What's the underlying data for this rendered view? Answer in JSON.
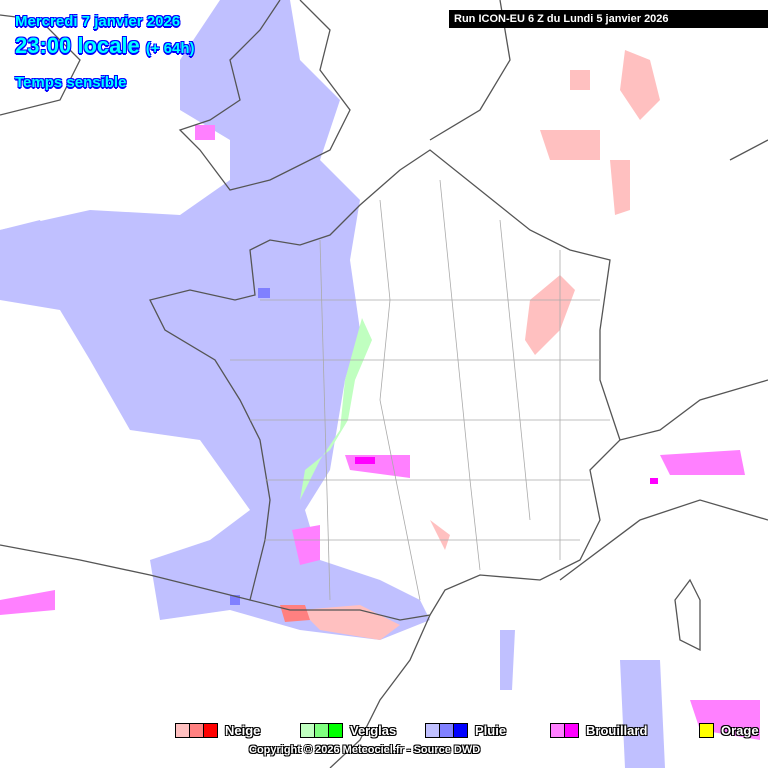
{
  "header": {
    "date": "Mercredi 7 janvier 2026",
    "time": "23:00 locale",
    "offset": "(+ 64h)",
    "parameter": "Temps sensible"
  },
  "run_label": "Run ICON-EU 6 Z du Lundi 5 janvier 2026",
  "legend": [
    {
      "label": "Neige",
      "colors": [
        "#ffc0c0",
        "#ff8080",
        "#ff0000"
      ]
    },
    {
      "label": "Verglas",
      "colors": [
        "#c0ffc0",
        "#80ff80",
        "#00ff00"
      ]
    },
    {
      "label": "Pluie",
      "colors": [
        "#c0c0ff",
        "#8080ff",
        "#0000ff"
      ]
    },
    {
      "label": "Brouillard",
      "colors": [
        "#ff80ff",
        "#ff00ff"
      ]
    },
    {
      "label": "Orage",
      "colors": [
        "#ffff00"
      ]
    }
  ],
  "copyright": "Copyright © 2026 Meteociel.fr - Source DWD"
}
